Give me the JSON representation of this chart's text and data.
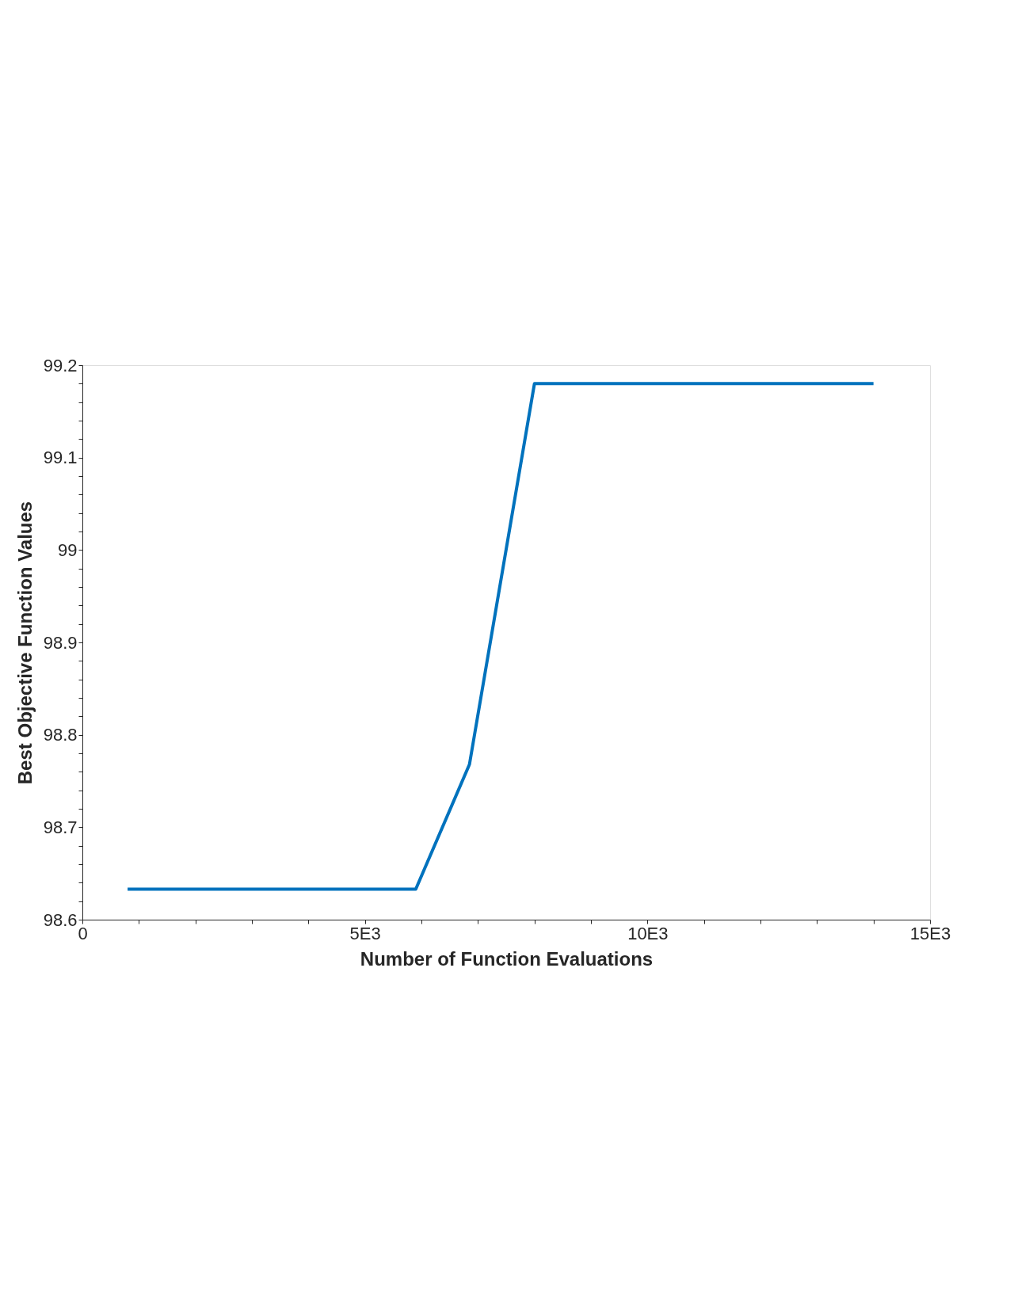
{
  "chart_data": {
    "type": "line",
    "xlabel": "Number of Function Evaluations",
    "ylabel": "Best Objective Function Values",
    "x": [
      800,
      5900,
      6850,
      8000,
      14000
    ],
    "series": [
      {
        "color": "#0072bd",
        "values": [
          98.633,
          98.633,
          98.768,
          99.18,
          99.18
        ]
      }
    ],
    "xlim": [
      0,
      15000
    ],
    "xticks": [
      0,
      {
        "value": 1000,
        "label": null
      },
      {
        "value": 2000,
        "label": null
      },
      {
        "value": 3000,
        "label": null
      },
      {
        "value": 4000,
        "label": null
      },
      {
        "value": 5000,
        "label": "5E3"
      },
      {
        "value": 6000,
        "label": null
      },
      {
        "value": 7000,
        "label": null
      },
      {
        "value": 8000,
        "label": null
      },
      {
        "value": 9000,
        "label": null
      },
      {
        "value": 10000,
        "label": "10E3"
      },
      {
        "value": 11000,
        "label": null
      },
      {
        "value": 12000,
        "label": null
      },
      {
        "value": 13000,
        "label": null
      },
      {
        "value": 14000,
        "label": null
      },
      {
        "value": 15000,
        "label": "15E3"
      }
    ],
    "ylim": [
      98.6,
      99.2
    ],
    "yticks": [
      98.6,
      {
        "value": 98.62,
        "label": null
      },
      {
        "value": 98.64,
        "label": null
      },
      {
        "value": 98.66,
        "label": null
      },
      {
        "value": 98.68,
        "label": null
      },
      98.7,
      {
        "value": 98.72,
        "label": null
      },
      {
        "value": 98.74,
        "label": null
      },
      {
        "value": 98.76,
        "label": null
      },
      {
        "value": 98.78,
        "label": null
      },
      98.8,
      {
        "value": 98.82,
        "label": null
      },
      {
        "value": 98.84,
        "label": null
      },
      {
        "value": 98.86,
        "label": null
      },
      {
        "value": 98.88,
        "label": null
      },
      98.9,
      {
        "value": 98.92,
        "label": null
      },
      {
        "value": 98.94,
        "label": null
      },
      {
        "value": 98.96,
        "label": null
      },
      {
        "value": 98.98,
        "label": null
      },
      99,
      {
        "value": 99.02,
        "label": null
      },
      {
        "value": 99.04,
        "label": null
      },
      {
        "value": 99.06,
        "label": null
      },
      {
        "value": 99.08,
        "label": null
      },
      99.1,
      {
        "value": 99.12,
        "label": null
      },
      {
        "value": 99.14,
        "label": null
      },
      {
        "value": 99.16,
        "label": null
      },
      {
        "value": 99.18,
        "label": null
      },
      99.2
    ],
    "grid": false,
    "line_style": "solid",
    "marker": "none"
  }
}
